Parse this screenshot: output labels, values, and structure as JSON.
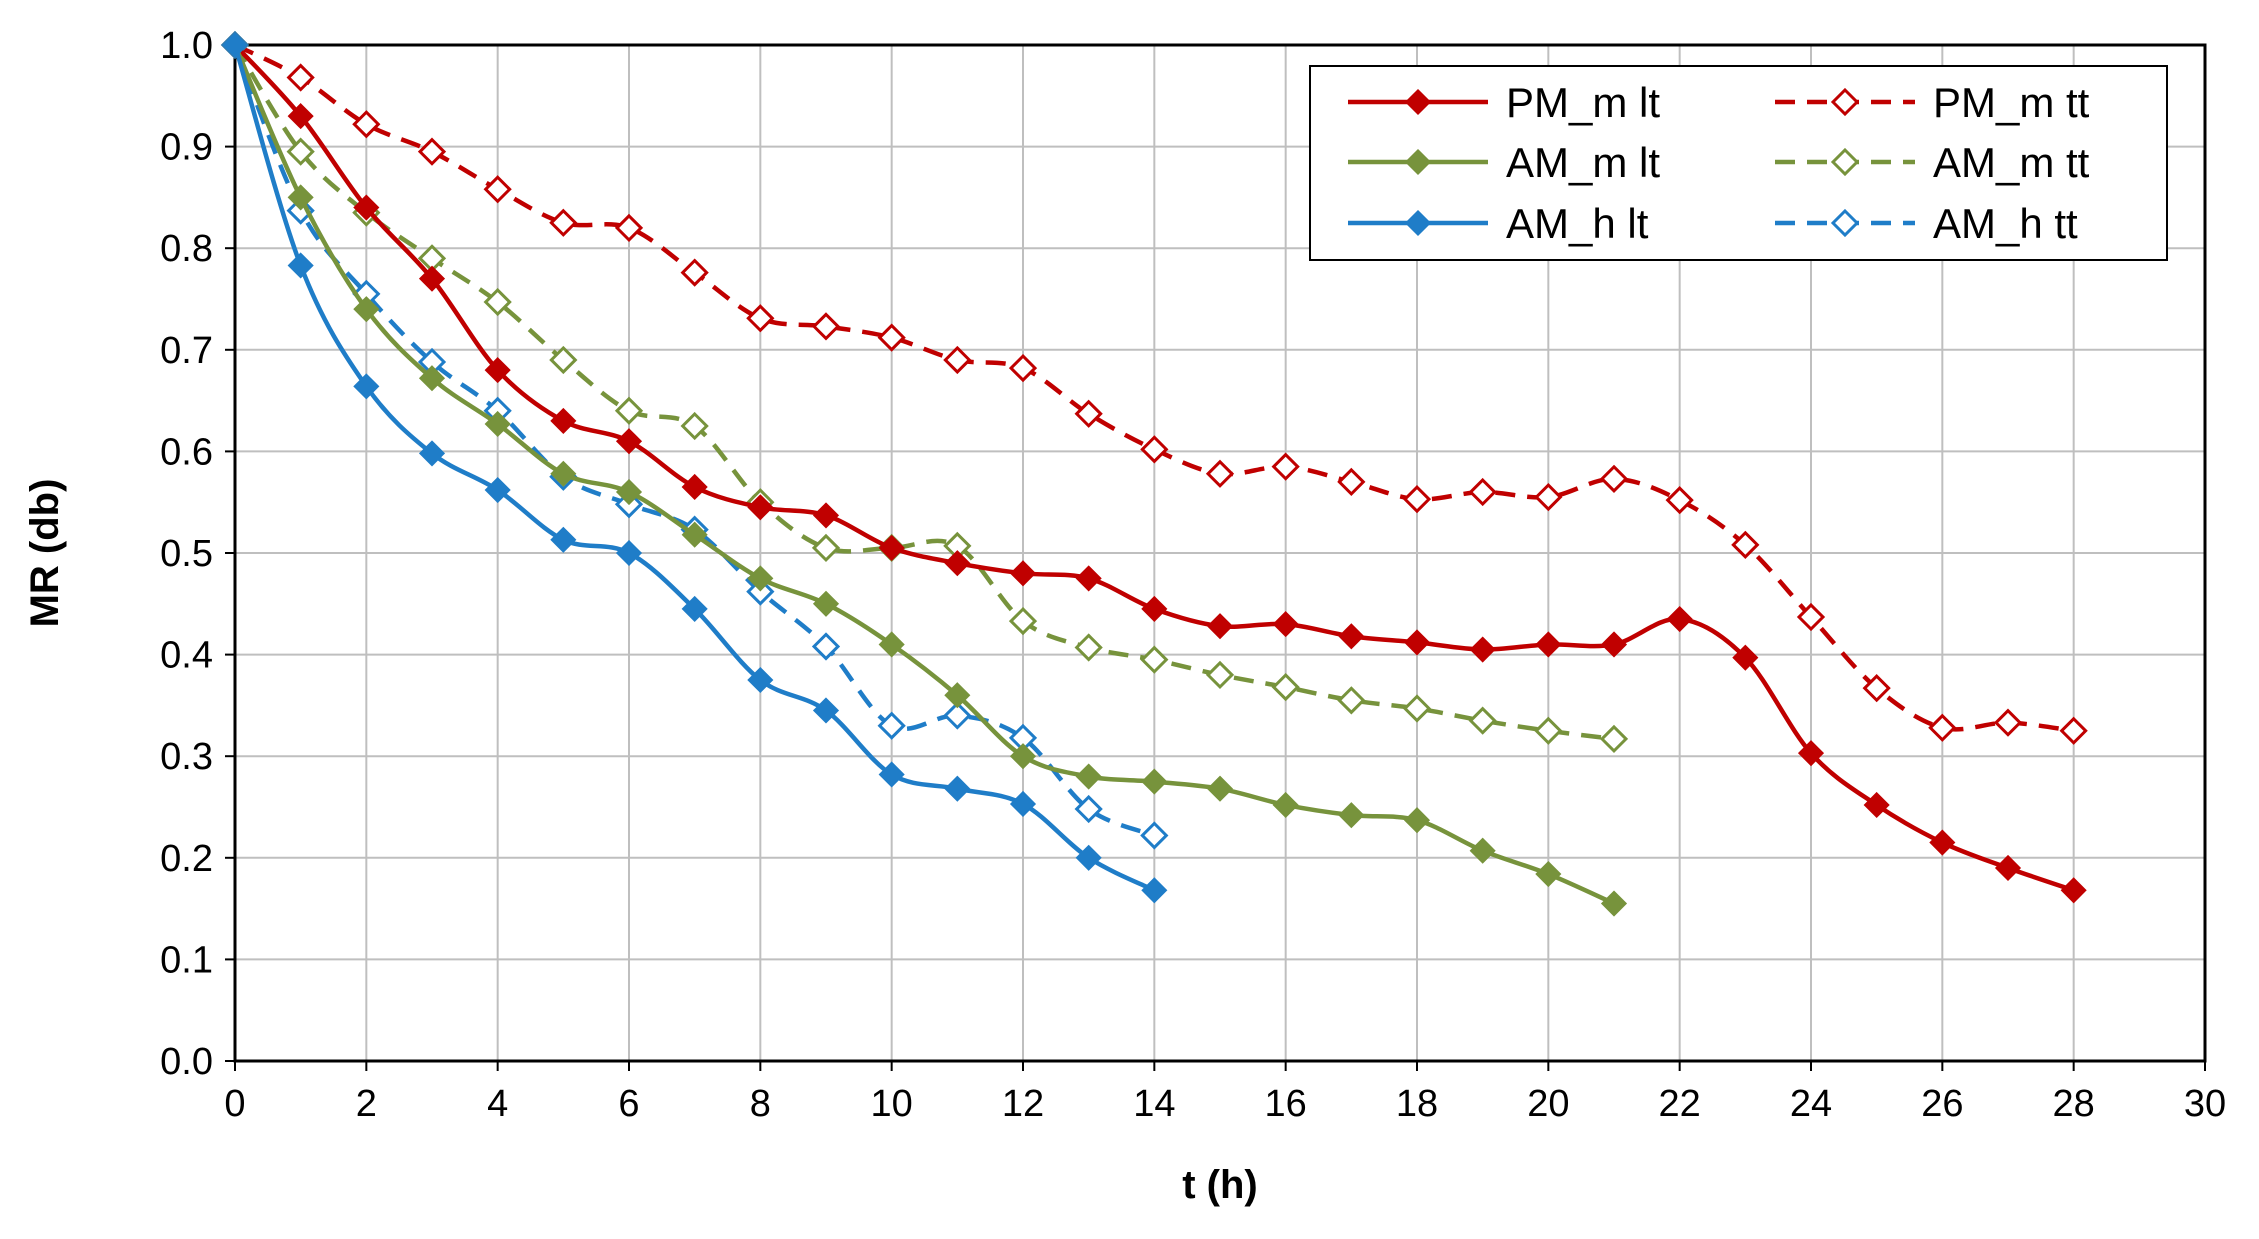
{
  "chart_data": {
    "type": "line",
    "title": "",
    "xlabel": "t (h)",
    "ylabel": "MR (db)",
    "xlim": [
      0,
      30
    ],
    "ylim": [
      0,
      1
    ],
    "xticks": [
      "0",
      "2",
      "4",
      "6",
      "8",
      "10",
      "12",
      "14",
      "16",
      "18",
      "20",
      "22",
      "24",
      "26",
      "28",
      "30"
    ],
    "yticks": [
      "0.0",
      "0.1",
      "0.2",
      "0.3",
      "0.4",
      "0.5",
      "0.6",
      "0.7",
      "0.8",
      "0.9",
      "1.0"
    ],
    "grid": true,
    "legend_position": "top-right",
    "series": [
      {
        "name": "PM_m lt",
        "color": "#C00000",
        "dash": false,
        "filled": true,
        "x": [
          0,
          1,
          2,
          3,
          4,
          5,
          6,
          7,
          8,
          9,
          10,
          11,
          12,
          13,
          14,
          15,
          16,
          17,
          18,
          19,
          20,
          21,
          22,
          23,
          24,
          25,
          26,
          27,
          28
        ],
        "y": [
          1.0,
          0.93,
          0.84,
          0.77,
          0.68,
          0.63,
          0.61,
          0.565,
          0.545,
          0.537,
          0.505,
          0.49,
          0.48,
          0.475,
          0.445,
          0.428,
          0.43,
          0.418,
          0.412,
          0.405,
          0.41,
          0.41,
          0.435,
          0.397,
          0.303,
          0.252,
          0.215,
          0.19,
          0.168
        ]
      },
      {
        "name": "PM_m tt",
        "color": "#C00000",
        "dash": true,
        "filled": false,
        "x": [
          0,
          1,
          2,
          3,
          4,
          5,
          6,
          7,
          8,
          9,
          10,
          11,
          12,
          13,
          14,
          15,
          16,
          17,
          18,
          19,
          20,
          21,
          22,
          23,
          24,
          25,
          26,
          27,
          28
        ],
        "y": [
          1.0,
          0.968,
          0.922,
          0.895,
          0.858,
          0.825,
          0.82,
          0.776,
          0.731,
          0.723,
          0.712,
          0.69,
          0.682,
          0.637,
          0.602,
          0.578,
          0.585,
          0.57,
          0.553,
          0.56,
          0.555,
          0.573,
          0.552,
          0.508,
          0.437,
          0.367,
          0.328,
          0.333,
          0.325
        ]
      },
      {
        "name": "AM_m lt",
        "color": "#77933C",
        "dash": false,
        "filled": true,
        "x": [
          0,
          1,
          2,
          3,
          4,
          5,
          6,
          7,
          8,
          9,
          10,
          11,
          12,
          13,
          14,
          15,
          16,
          17,
          18,
          19,
          20,
          21
        ],
        "y": [
          1.0,
          0.85,
          0.74,
          0.672,
          0.627,
          0.578,
          0.56,
          0.518,
          0.475,
          0.45,
          0.41,
          0.36,
          0.3,
          0.28,
          0.275,
          0.268,
          0.252,
          0.242,
          0.237,
          0.207,
          0.184,
          0.155
        ]
      },
      {
        "name": "AM_m tt",
        "color": "#77933C",
        "dash": true,
        "filled": false,
        "x": [
          0,
          1,
          2,
          3,
          4,
          5,
          6,
          7,
          8,
          9,
          10,
          11,
          12,
          13,
          14,
          15,
          16,
          17,
          18,
          19,
          20,
          21
        ],
        "y": [
          1.0,
          0.895,
          0.835,
          0.79,
          0.747,
          0.69,
          0.64,
          0.625,
          0.55,
          0.505,
          0.505,
          0.507,
          0.433,
          0.407,
          0.395,
          0.38,
          0.368,
          0.355,
          0.347,
          0.335,
          0.325,
          0.317
        ]
      },
      {
        "name": "AM_h lt",
        "color": "#1F7DC8",
        "dash": false,
        "filled": true,
        "x": [
          0,
          1,
          2,
          3,
          4,
          5,
          6,
          7,
          8,
          9,
          10,
          11,
          12,
          13,
          14
        ],
        "y": [
          1.0,
          0.783,
          0.664,
          0.598,
          0.562,
          0.513,
          0.5,
          0.445,
          0.375,
          0.345,
          0.282,
          0.268,
          0.253,
          0.2,
          0.168
        ]
      },
      {
        "name": "AM_h tt",
        "color": "#1F7DC8",
        "dash": true,
        "filled": false,
        "x": [
          0,
          1,
          2,
          3,
          4,
          5,
          6,
          7,
          8,
          9,
          10,
          11,
          12,
          13,
          14
        ],
        "y": [
          1.0,
          0.837,
          0.755,
          0.688,
          0.64,
          0.575,
          0.548,
          0.523,
          0.462,
          0.408,
          0.33,
          0.34,
          0.318,
          0.248,
          0.222
        ]
      }
    ]
  }
}
